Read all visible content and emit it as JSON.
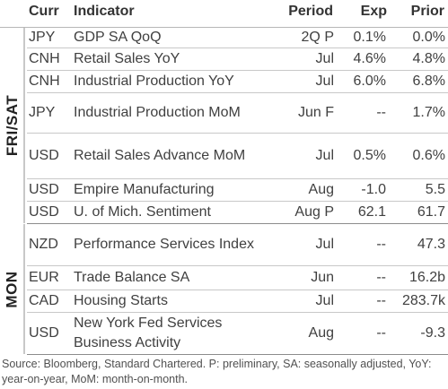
{
  "headers": {
    "curr": "Curr",
    "indicator": "Indicator",
    "period": "Period",
    "exp": "Exp",
    "prior": "Prior"
  },
  "groups": [
    {
      "label": "FRI/SAT"
    },
    {
      "label": "MON"
    }
  ],
  "rows": [
    {
      "curr": "JPY",
      "indicator": "GDP SA QoQ",
      "period": "2Q P",
      "exp": "0.1%",
      "prior": "0.0%"
    },
    {
      "curr": "CNH",
      "indicator": "Retail Sales YoY",
      "period": "Jul",
      "exp": "4.6%",
      "prior": "4.8%"
    },
    {
      "curr": "CNH",
      "indicator": "Industrial Production YoY",
      "period": "Jul",
      "exp": "6.0%",
      "prior": "6.8%"
    },
    {
      "curr": "JPY",
      "indicator": "Industrial Production MoM",
      "period": "Jun F",
      "exp": "--",
      "prior": "1.7%"
    },
    {
      "curr": "USD",
      "indicator": "Retail Sales Advance MoM",
      "period": "Jul",
      "exp": "0.5%",
      "prior": "0.6%"
    },
    {
      "curr": "USD",
      "indicator": "Empire Manufacturing",
      "period": "Aug",
      "exp": "-1.0",
      "prior": "5.5"
    },
    {
      "curr": "USD",
      "indicator": "U. of Mich. Sentiment",
      "period": "Aug P",
      "exp": "62.1",
      "prior": "61.7"
    },
    {
      "curr": "NZD",
      "indicator": "Performance Services Index",
      "period": "Jul",
      "exp": "--",
      "prior": "47.3"
    },
    {
      "curr": "EUR",
      "indicator": "Trade Balance SA",
      "period": "Jun",
      "exp": "--",
      "prior": "16.2b"
    },
    {
      "curr": "CAD",
      "indicator": "Housing Starts",
      "period": "Jul",
      "exp": "--",
      "prior": "283.7k"
    },
    {
      "curr": "USD",
      "indicator": "New York Fed Services Business Activity",
      "period": "Aug",
      "exp": "--",
      "prior": "-9.3"
    }
  ],
  "source": "Source: Bloomberg, Standard Chartered. P: preliminary, SA: seasonally adjusted, YoY: year-on-year, MoM: month-on-month."
}
